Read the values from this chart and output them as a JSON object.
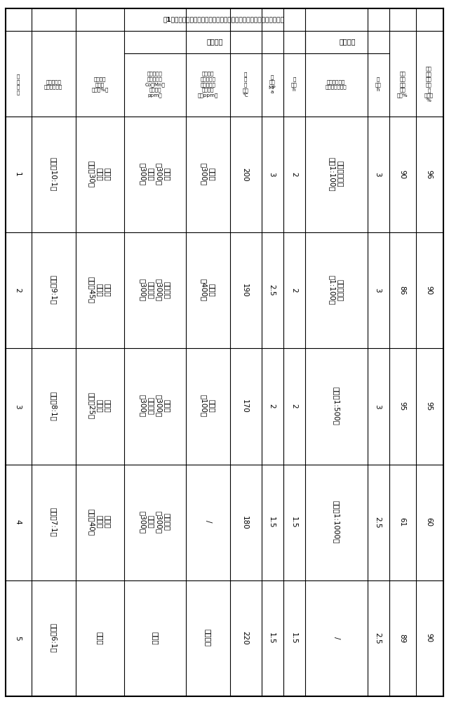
{
  "title": "表1、邻二甲苯氧化与酯化耦合制备邻苯二甲酸二甲酯的反应条件和结果",
  "rows": [
    {
      "example": "1",
      "alcohol": "甲醇（10:1）",
      "solvent": "邻苯二\n甲酸二\n甲酯（30）",
      "cat_ox": "醋酸钴\n（300）\n醋酸锰\n（300）",
      "co_cat": "醋酸钾\n（300）",
      "temp": "200",
      "pressure": "3",
      "time_ox": "2",
      "cat_est": "硅磷酸铝分子\n筛（1:100）",
      "time_est": "3",
      "conversion": "90",
      "selectivity": "96"
    },
    {
      "example": "2",
      "alcohol": "甲醇（9:1）",
      "solvent": "邻苯二\n甲酸二\n甲酯（45）",
      "cat_ox": "环烷酸钴\n（300）\n环烷酸锰\n（300）",
      "co_cat": "溴化钠\n（400）",
      "temp": "190",
      "pressure": "2.5",
      "time_ox": "2",
      "cat_est": "磷钨杂多酸\n（1:100）",
      "time_est": "3",
      "conversion": "86",
      "selectivity": "90"
    },
    {
      "example": "3",
      "alcohol": "甲醇（8:1）",
      "solvent": "邻苯二\n甲酸二\n甲酯（25）",
      "cat_ox": "醋酸钴\n（300）\n环烷酸锰\n（300）",
      "co_cat": "草酸钙\n（100）",
      "temp": "170",
      "pressure": "2",
      "time_ox": "2",
      "cat_est": "草酸（1:500）",
      "time_est": "3",
      "conversion": "95",
      "selectivity": "95"
    },
    {
      "example": "4",
      "alcohol": "甲醇（7:1）",
      "solvent": "邻甲基\n苯甲酸\n甲酯（40）",
      "cat_ox": "环烷酸钴\n（300）\n醋酸锰\n（300）",
      "co_cat": "/",
      "temp": "180",
      "pressure": "1.5",
      "time_ox": "1.5",
      "cat_est": "硫酸（1:1000）",
      "time_est": "2.5",
      "conversion": "61",
      "selectivity": "60"
    },
    {
      "example": "5",
      "alcohol": "甲醇（6:1）",
      "solvent": "邻甲基",
      "cat_ox": "醋酸钴",
      "co_cat": "环烷酸镁",
      "temp": "220",
      "pressure": "1.5",
      "time_ox": "1.5",
      "cat_est": "/",
      "time_est": "2.5",
      "conversion": "89",
      "selectivity": "90"
    }
  ],
  "header_example": "实\n例\n编\n号",
  "header_alcohol": "醇（与邻二\n甲苯摩尔比）",
  "header_solvent": "溶剂（邻\n二甲苯\n浓度，%）",
  "header_oxidation": "氧化过程",
  "header_cat_ox": "催化剂（反\n应混合物中\nCo、Mn离\n子浓度，\nppm）",
  "header_co_cat": "助催化剂\n（反应混合\n物中金属离\n子或溴离\n度，ppm）",
  "header_temp": "反\n应\n温\n度，\n°C",
  "header_pressure": "压\n力，\nMP\na",
  "header_time_ox": "时\n间，\nh",
  "header_esterification": "酯化过程",
  "header_cat_est": "催化剂（与邻\n二甲苯质量比）",
  "header_time_est": "时\n间，\nh",
  "header_conversion": "邻二\n甲苯\n单程\n转化\n率，%",
  "header_selectivity": "邻苯\n二甲\n酸二\n甲酯\n选\n择性，\n%"
}
